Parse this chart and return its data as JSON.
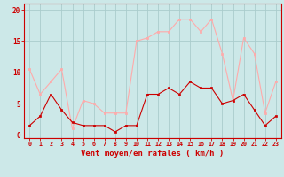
{
  "x": [
    0,
    1,
    2,
    3,
    4,
    5,
    6,
    7,
    8,
    9,
    10,
    11,
    12,
    13,
    14,
    15,
    16,
    17,
    18,
    19,
    20,
    21,
    22,
    23
  ],
  "wind_avg": [
    1.5,
    3.0,
    6.5,
    4.0,
    2.0,
    1.5,
    1.5,
    1.5,
    0.5,
    1.5,
    1.5,
    6.5,
    6.5,
    7.5,
    6.5,
    8.5,
    7.5,
    7.5,
    5.0,
    5.5,
    6.5,
    4.0,
    1.5,
    3.0
  ],
  "wind_gust": [
    10.5,
    6.5,
    8.5,
    10.5,
    1.0,
    5.5,
    5.0,
    3.5,
    3.5,
    3.5,
    15.0,
    15.5,
    16.5,
    16.5,
    18.5,
    18.5,
    16.5,
    18.5,
    13.0,
    5.5,
    15.5,
    13.0,
    3.5,
    8.5
  ],
  "avg_color": "#cc0000",
  "gust_color": "#ffaaaa",
  "bg_color": "#cce8e8",
  "grid_color": "#aacccc",
  "axis_color": "#cc0000",
  "tick_color": "#cc0000",
  "xlabel": "Vent moyen/en rafales ( km/h )",
  "ylim": [
    -0.5,
    21
  ],
  "yticks": [
    0,
    5,
    10,
    15,
    20
  ],
  "xlim": [
    -0.5,
    23.5
  ],
  "marker_size": 2.0,
  "line_width": 0.8
}
